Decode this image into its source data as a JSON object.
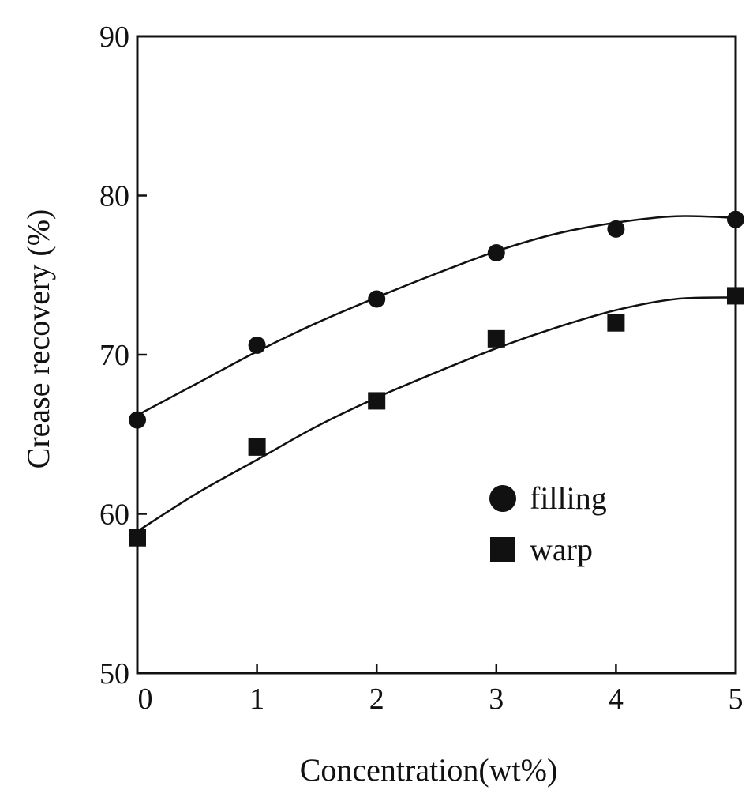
{
  "chart_data": {
    "type": "scatter",
    "title": "",
    "xlabel": "Concentration(wt%)",
    "ylabel": "Crease recovery (%)",
    "xlim": [
      0,
      5
    ],
    "ylim": [
      50,
      90
    ],
    "x_ticks": [
      "0",
      "1",
      "2",
      "3",
      "4",
      "5"
    ],
    "y_ticks": [
      "50",
      "60",
      "70",
      "80",
      "90"
    ],
    "grid": false,
    "legend_position": "right",
    "series": [
      {
        "name": "filling",
        "marker": "circle",
        "x": [
          0,
          1,
          2,
          3,
          4,
          5
        ],
        "y": [
          65.9,
          70.6,
          73.5,
          76.4,
          77.9,
          78.5
        ],
        "fit_curve": {
          "x": [
            0,
            0.5,
            1,
            1.5,
            2,
            2.5,
            3,
            3.5,
            4,
            4.5,
            5
          ],
          "y": [
            66.2,
            68.2,
            70.2,
            72.0,
            73.6,
            75.1,
            76.5,
            77.6,
            78.3,
            78.7,
            78.6
          ]
        }
      },
      {
        "name": "warp",
        "marker": "square",
        "x": [
          0,
          1,
          2,
          3,
          4,
          5
        ],
        "y": [
          58.5,
          64.2,
          67.1,
          71.0,
          72.0,
          73.7
        ],
        "fit_curve": {
          "x": [
            0,
            0.5,
            1,
            1.5,
            2,
            2.5,
            3,
            3.5,
            4,
            4.5,
            5
          ],
          "y": [
            58.9,
            61.3,
            63.4,
            65.5,
            67.3,
            68.9,
            70.4,
            71.7,
            72.8,
            73.5,
            73.6
          ]
        }
      }
    ],
    "marker_color": "#111111",
    "axis_color": "#111111"
  }
}
